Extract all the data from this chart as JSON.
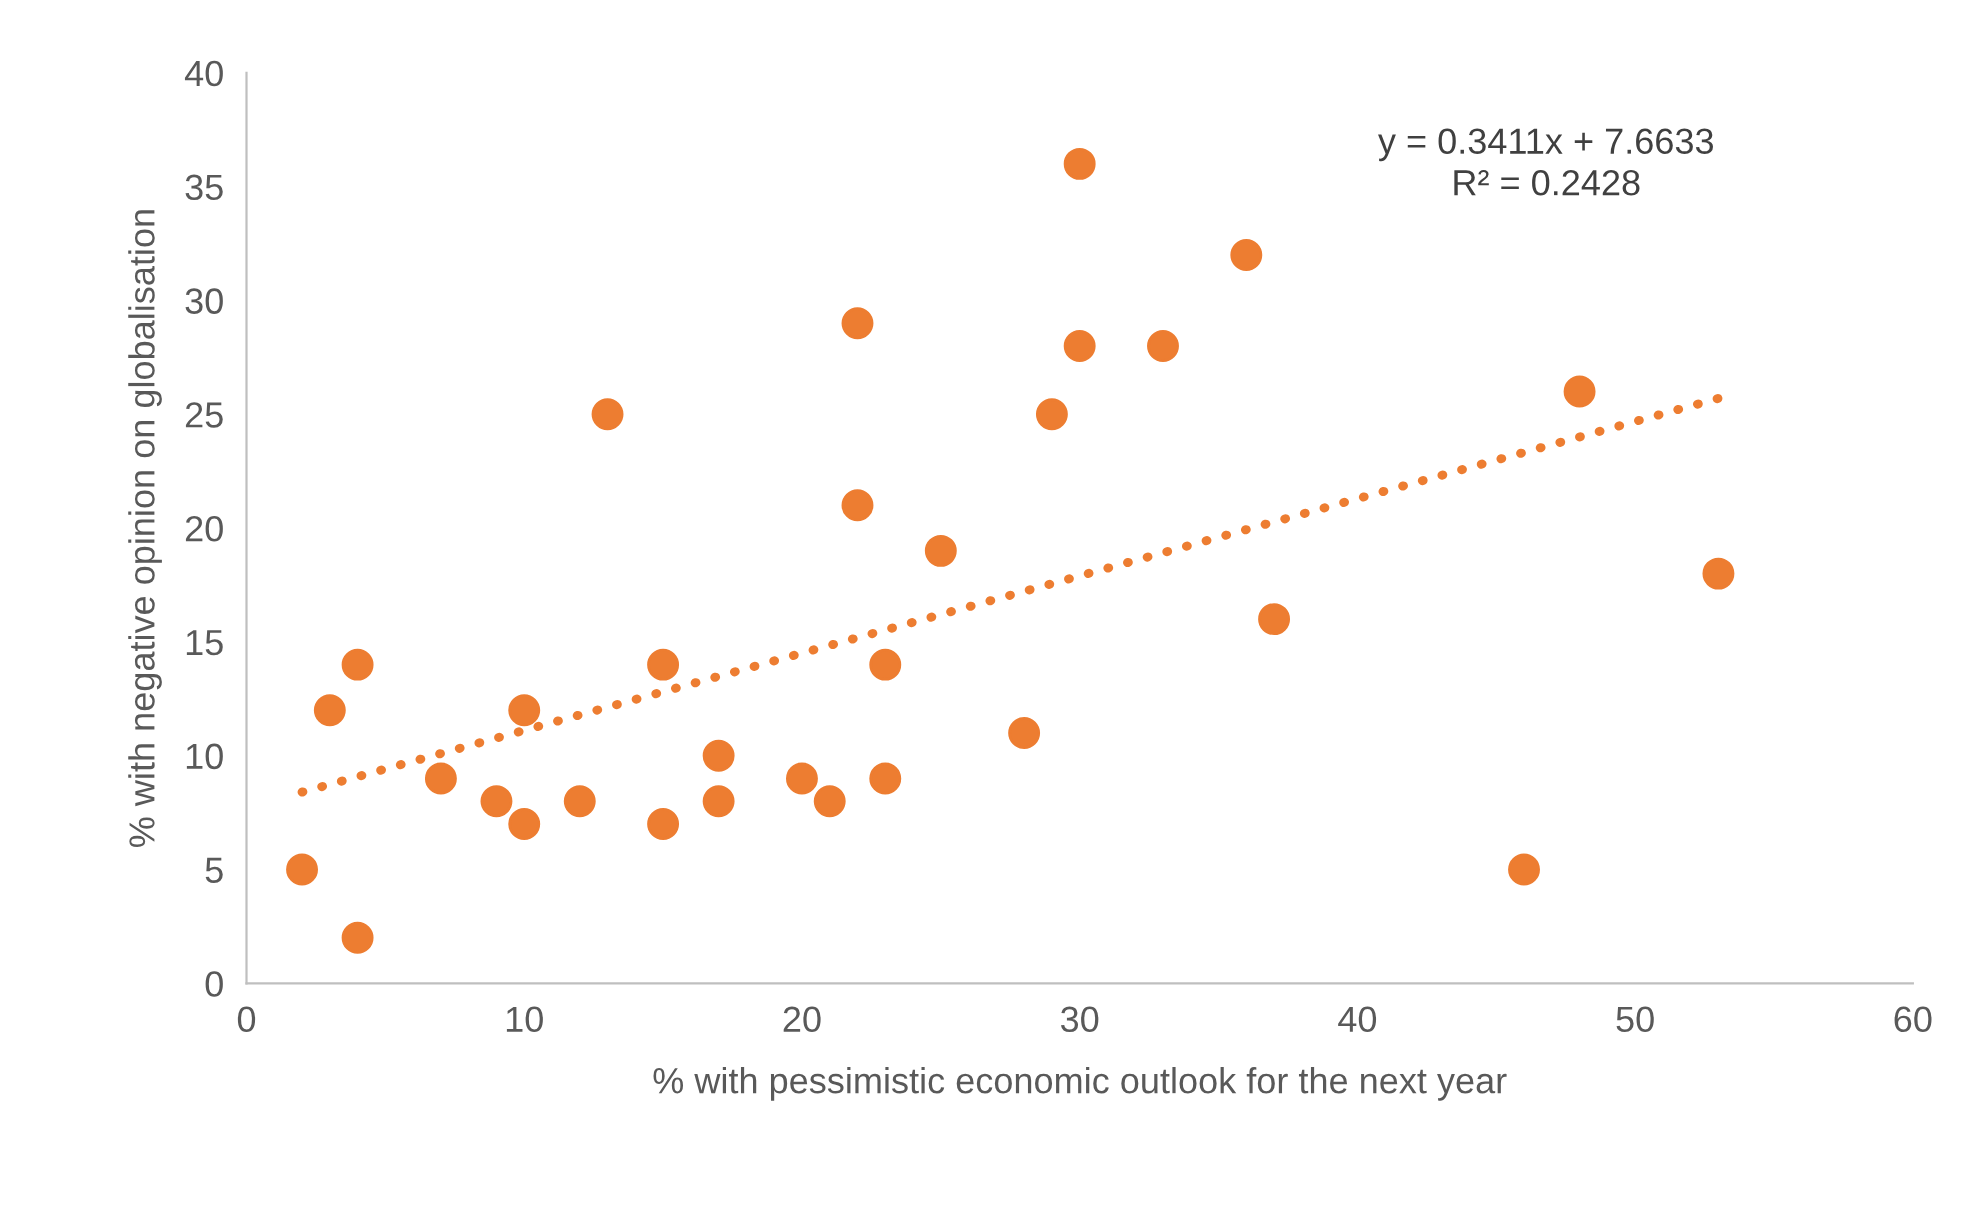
{
  "chart_data": {
    "type": "scatter",
    "xlabel": "% with pessimistic economic outlook for the next year",
    "ylabel": "% with negative opinion on globalisation",
    "annotations": [
      "y = 0.3411x + 7.6633\nR² = 0.2428"
    ],
    "xlim": [
      0,
      60
    ],
    "xticks": [
      0,
      10,
      20,
      30,
      40,
      50,
      60
    ],
    "ylim": [
      0,
      40
    ],
    "yticks": [
      0,
      5,
      10,
      15,
      20,
      25,
      30,
      35,
      40
    ],
    "grid": false,
    "series": [
      {
        "color": "#ed7d31",
        "marker": "circle",
        "x": [
          2,
          3,
          4,
          4,
          7,
          9,
          10,
          10,
          12,
          13,
          15,
          15,
          17,
          17,
          20,
          21,
          22,
          22,
          23,
          23,
          25,
          28,
          29,
          30,
          30,
          33,
          36,
          37,
          46,
          48,
          53
        ],
        "values": [
          5,
          12,
          14,
          2,
          9,
          8,
          12,
          7,
          8,
          25,
          14,
          7,
          10,
          8,
          9,
          8,
          29,
          21,
          14,
          9,
          19,
          11,
          25,
          36,
          28,
          28,
          32,
          16,
          5,
          26,
          18
        ]
      },
      {
        "type": "line",
        "line_style": "dotted",
        "color": "#ed7d31",
        "x": [
          2,
          53
        ],
        "values": [
          8.4,
          25.7
        ]
      }
    ]
  }
}
